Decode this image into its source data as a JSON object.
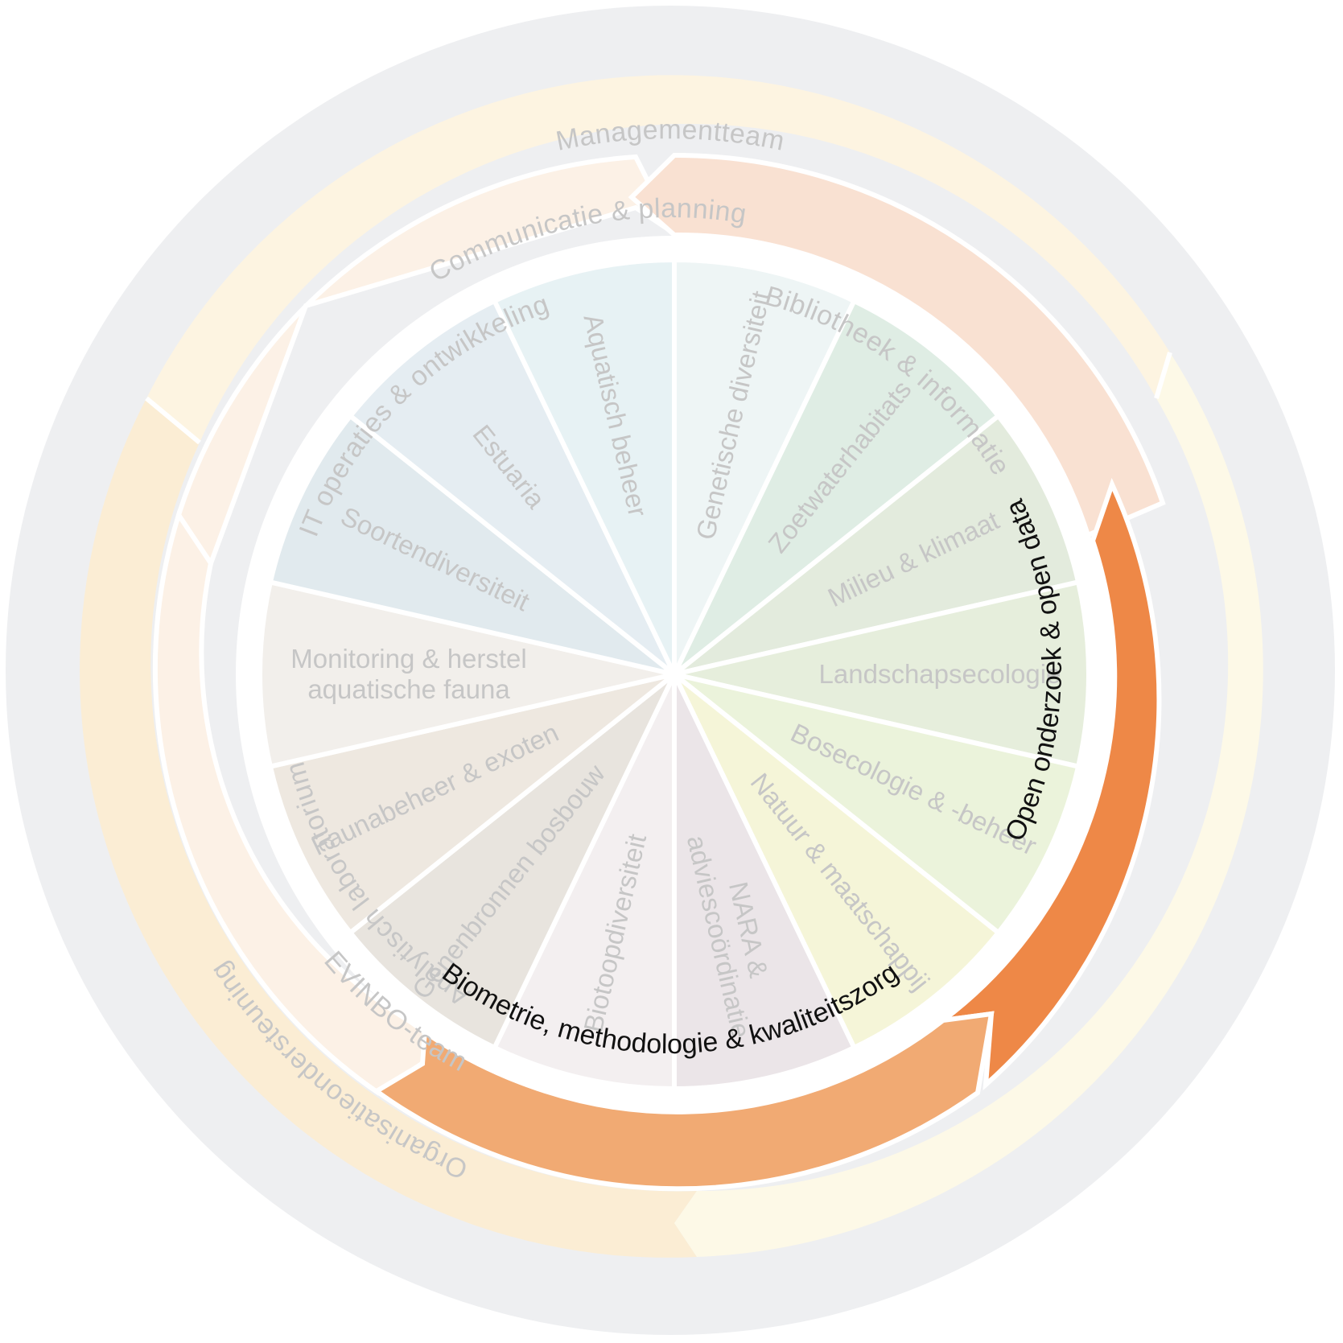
{
  "title": "",
  "colors": {
    "outer_ring": "#eeeff1",
    "communicatie_ring": "#fdf4e1",
    "evinbo_ring": "#fbedd4",
    "organisatie_ring": "#fdf9e7",
    "it_arc": "#fcf1e6",
    "bibliotheek_arc": "#f9e1d2",
    "analytisch_arc": "#fcf1e6",
    "open_arc": "#ee8847",
    "biometrie_arc": "#f1aa73",
    "faded_text": "#c6c6c6",
    "highlight_text": "#111111"
  },
  "outer_rings": {
    "managementteam": "Managementteam",
    "communicatie": "Communicatie & planning",
    "evinbo": "EVINBO-team",
    "organisatie": "Organisatieondersteuning"
  },
  "middle_arcs": {
    "it": "IT operaties & ontwikkeling",
    "bibliotheek": "Bibliotheek & informatie",
    "analytisch": "Analytisch laboratorium",
    "open": "Open onderzoek & open data",
    "biometrie": "Biometrie, methodologie & kwaliteitszorg"
  },
  "segments": [
    {
      "lines": [
        "Genetische diversiteit"
      ],
      "color": "#eef5f5"
    },
    {
      "lines": [
        "Zoetwaterhabitats"
      ],
      "color": "#dfede4"
    },
    {
      "lines": [
        "Milieu & klimaat"
      ],
      "color": "#e3ebdd"
    },
    {
      "lines": [
        "Landschapsecologie"
      ],
      "color": "#e6eedc"
    },
    {
      "lines": [
        "Bosecologie & -beheer"
      ],
      "color": "#ebf3db"
    },
    {
      "lines": [
        "Natuur & maatschappij"
      ],
      "color": "#f5f5d8"
    },
    {
      "lines": [
        "NARA &",
        "adviescoördinatie"
      ],
      "color": "#ebe5e8"
    },
    {
      "lines": [
        "Biotoopdiversiteit"
      ],
      "color": "#f3eff0"
    },
    {
      "lines": [
        "Genenbronnen bosbouw"
      ],
      "color": "#e8e4de"
    },
    {
      "lines": [
        "Faunabeheer & exoten"
      ],
      "color": "#eee8e0"
    },
    {
      "lines": [
        "Monitoring & herstel",
        "aquatische fauna"
      ],
      "color": "#f2efeb"
    },
    {
      "lines": [
        "Soortendiversiteit"
      ],
      "color": "#e1eaee"
    },
    {
      "lines": [
        "Estuaria"
      ],
      "color": "#e5edf2"
    },
    {
      "lines": [
        "Aquatisch beheer"
      ],
      "color": "#e7f2f4"
    }
  ]
}
